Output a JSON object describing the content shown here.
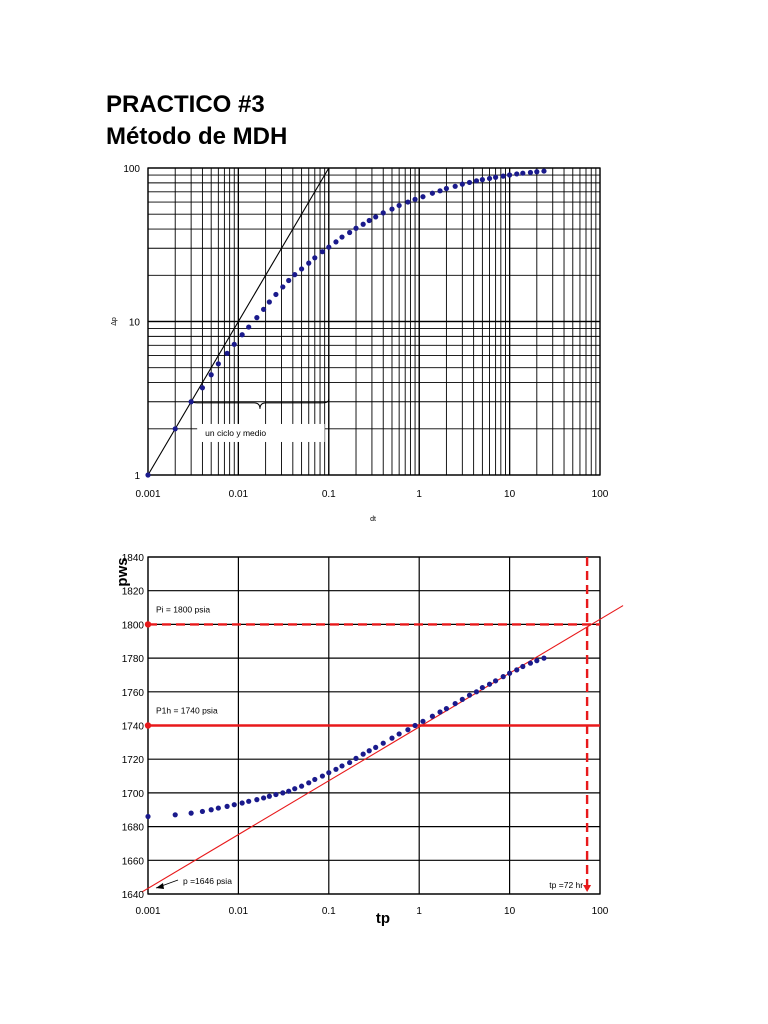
{
  "page": {
    "title_line1": "PRACTICO #3",
    "title_line2": "Método de MDH"
  },
  "chart_data": [
    {
      "type": "scatter",
      "xscale": "log",
      "yscale": "log",
      "xlim": [
        0.001,
        100
      ],
      "ylim": [
        1,
        100
      ],
      "xticks": [
        "0.001",
        "0.01",
        "0.1",
        "1",
        "10",
        "100"
      ],
      "yticks": [
        "1",
        "10",
        "100"
      ],
      "xlabel": "dt",
      "ylabel": "Δp",
      "grid": true,
      "marker_color": "#1a1a8c",
      "line_color": "#000000",
      "x": [
        0.001,
        0.002,
        0.003,
        0.004,
        0.005,
        0.006,
        0.0075,
        0.009,
        0.011,
        0.013,
        0.016,
        0.019,
        0.022,
        0.026,
        0.031,
        0.036,
        0.042,
        0.05,
        0.06,
        0.07,
        0.085,
        0.1,
        0.12,
        0.14,
        0.17,
        0.2,
        0.24,
        0.28,
        0.33,
        0.4,
        0.5,
        0.6,
        0.75,
        0.9,
        1.1,
        1.4,
        1.7,
        2,
        2.5,
        3,
        3.6,
        4.3,
        5,
        6,
        7,
        8.5,
        10,
        12,
        14,
        17,
        20,
        24
      ],
      "y": [
        1,
        2,
        3,
        3.7,
        4.5,
        5.3,
        6.2,
        7.1,
        8.2,
        9.2,
        10.6,
        12,
        13.4,
        15,
        16.8,
        18.5,
        20.2,
        22,
        24,
        26,
        28.5,
        30.5,
        33,
        35.5,
        38,
        40.5,
        43,
        45.5,
        48,
        51,
        54,
        57,
        60,
        62.5,
        65,
        68.5,
        71,
        73.5,
        76,
        78.5,
        80.5,
        82.5,
        84,
        85.5,
        87,
        88.5,
        90,
        91.5,
        92.5,
        93.5,
        94.5,
        95.5
      ],
      "unit_slope_line": {
        "x": [
          0.001,
          0.1
        ],
        "y": [
          1,
          100
        ]
      },
      "annotation": "un ciclo y medio"
    },
    {
      "type": "scatter",
      "xscale": "log",
      "xlim": [
        0.001,
        100
      ],
      "ylim": [
        1640,
        1840
      ],
      "xticks": [
        "0.001",
        "0.01",
        "0.1",
        "1",
        "10",
        "100"
      ],
      "yticks": [
        "1640",
        "1660",
        "1680",
        "1700",
        "1720",
        "1740",
        "1760",
        "1780",
        "1800",
        "1820",
        "1840"
      ],
      "xlabel": "tp",
      "ylabel": "pws",
      "grid": true,
      "marker_color": "#1a1a8c",
      "x": [
        0.001,
        0.002,
        0.003,
        0.004,
        0.005,
        0.006,
        0.0075,
        0.009,
        0.011,
        0.013,
        0.016,
        0.019,
        0.022,
        0.026,
        0.031,
        0.036,
        0.042,
        0.05,
        0.06,
        0.07,
        0.085,
        0.1,
        0.12,
        0.14,
        0.17,
        0.2,
        0.24,
        0.28,
        0.33,
        0.4,
        0.5,
        0.6,
        0.75,
        0.9,
        1.1,
        1.4,
        1.7,
        2,
        2.5,
        3,
        3.6,
        4.3,
        5,
        6,
        7,
        8.5,
        10,
        12,
        14,
        17,
        20,
        24
      ],
      "y": [
        1686,
        1687,
        1688,
        1689,
        1690,
        1691,
        1692,
        1693,
        1694,
        1695,
        1696,
        1697,
        1698,
        1699,
        1700,
        1701,
        1702.5,
        1704,
        1706,
        1708,
        1710,
        1712,
        1714,
        1716,
        1718,
        1720.5,
        1723,
        1725,
        1727,
        1729.5,
        1732.5,
        1735,
        1737.5,
        1740,
        1742.5,
        1745.5,
        1748,
        1750,
        1753,
        1755.5,
        1758,
        1760,
        1762.5,
        1764.5,
        1766.5,
        1769,
        1771,
        1773,
        1775,
        1777,
        1778.5,
        1780
      ],
      "fit_line": {
        "x": [
          0.001,
          100
        ],
        "y": [
          1643,
          1803
        ]
      },
      "horizontal_lines": [
        {
          "y": 1800,
          "label": "Pi = 1800 psia",
          "color": "#e8191b",
          "style": "dashed"
        },
        {
          "y": 1740,
          "label": "P1h = 1740 psia",
          "color": "#e8191b",
          "style": "solid"
        }
      ],
      "vertical_line": {
        "x": 72,
        "label": "tp =72 hr",
        "color": "#e8191b",
        "style": "dashed"
      },
      "annotation": "p =1646 psia"
    }
  ]
}
